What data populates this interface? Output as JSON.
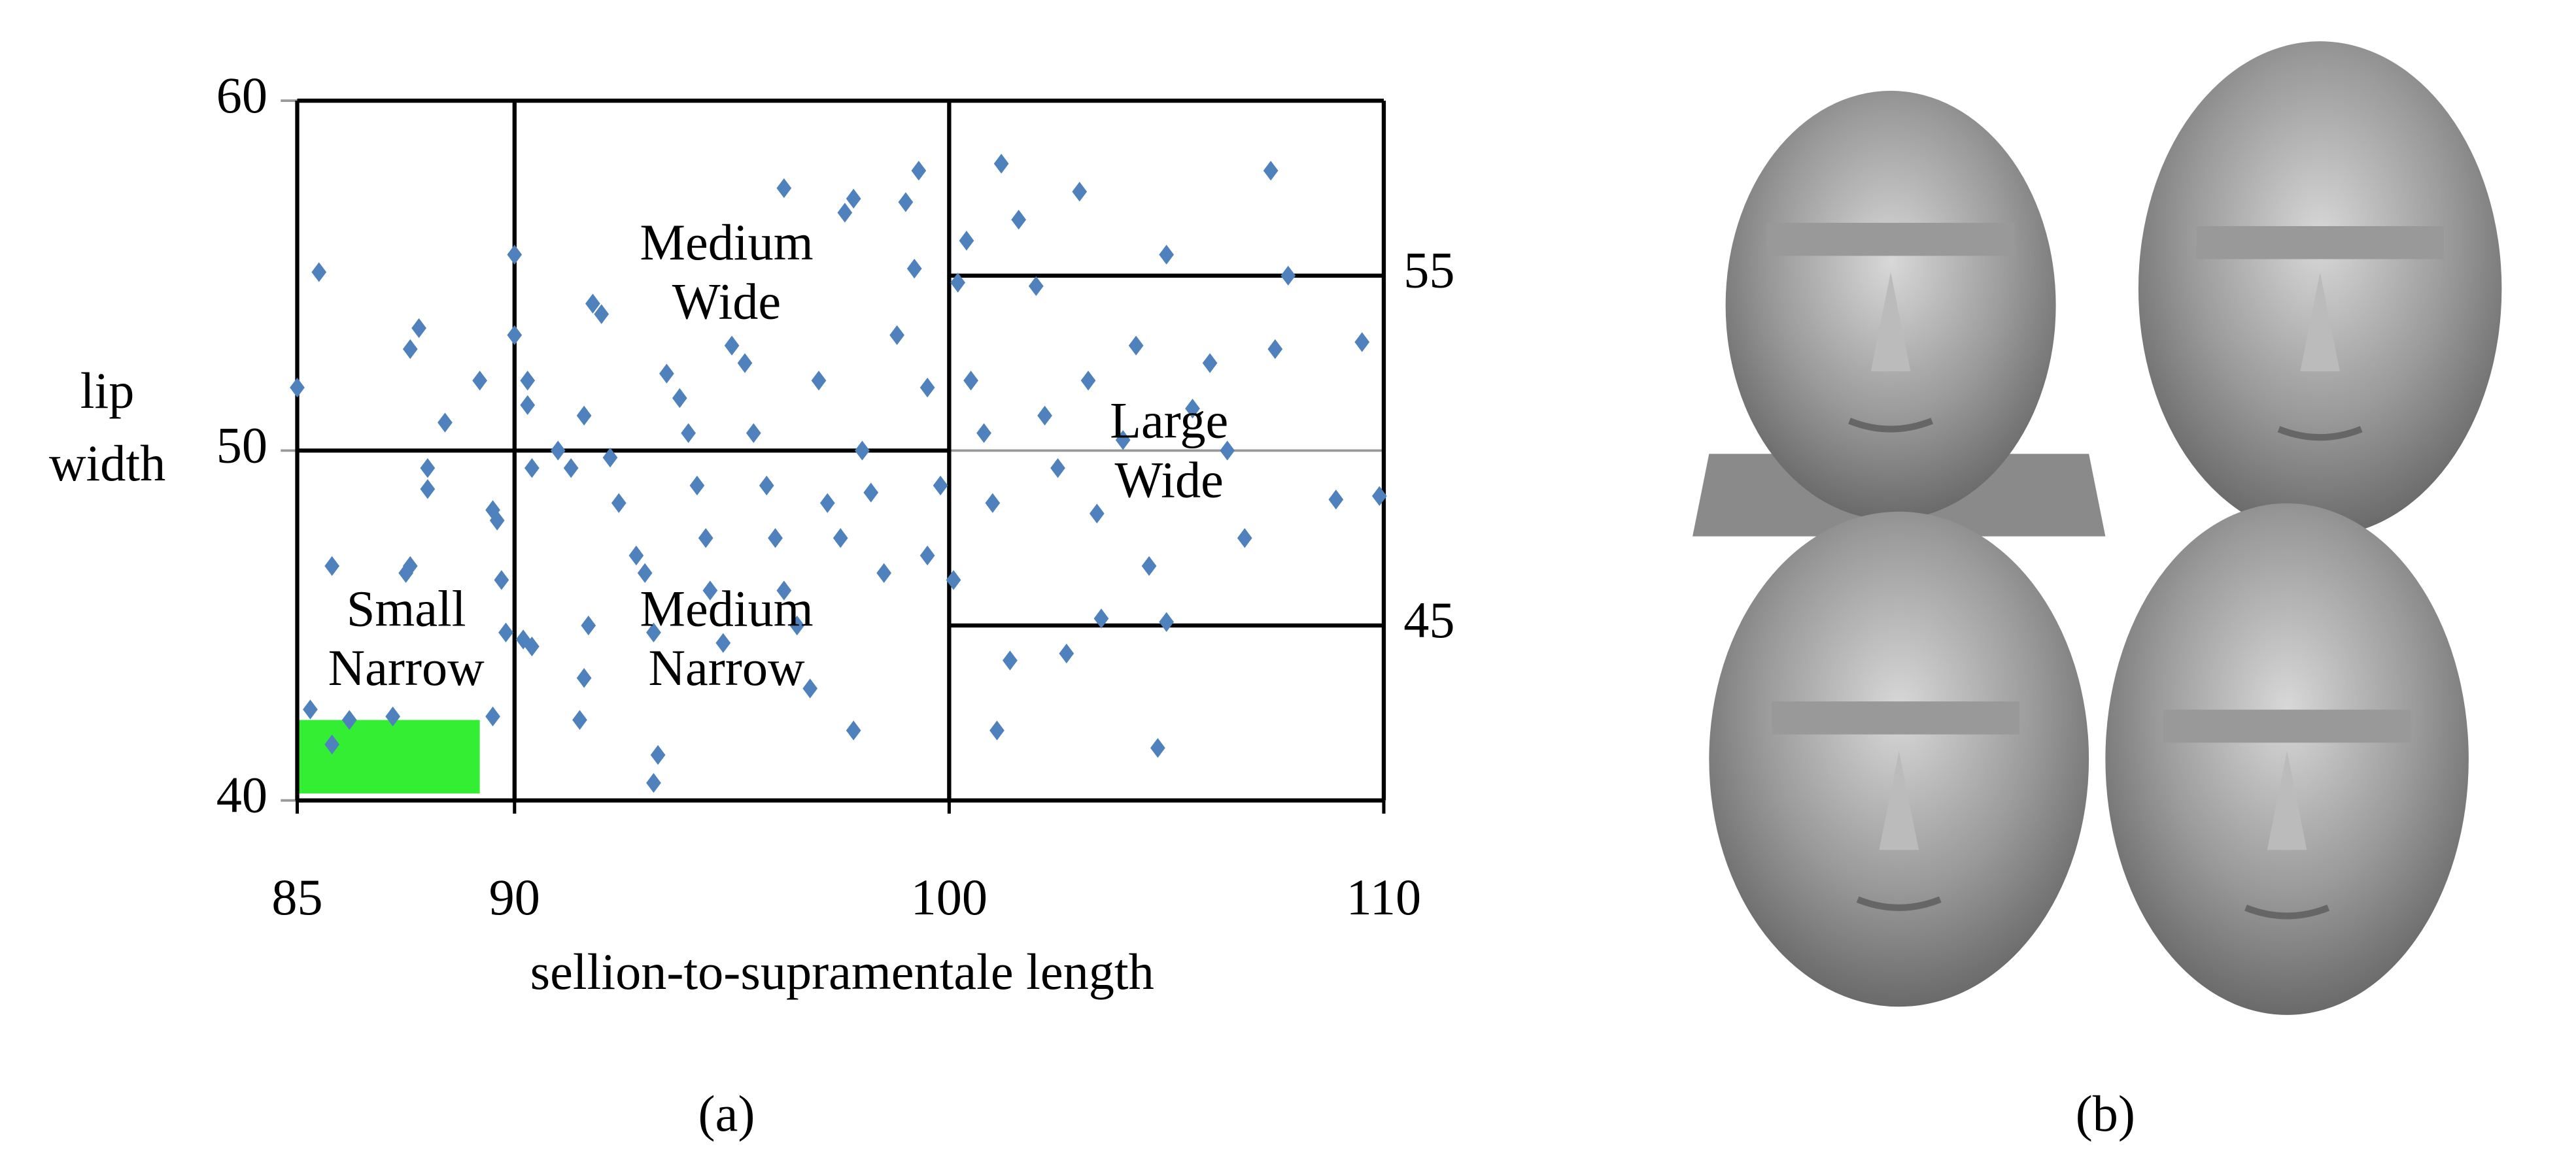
{
  "chart_data": {
    "type": "scatter",
    "xlabel": "sellion-to-supramentale  length",
    "ylabel": [
      "lip",
      "width"
    ],
    "caption": "(a)",
    "xlim": [
      85,
      110
    ],
    "xticks": [
      85,
      90,
      100,
      110
    ],
    "ylim": [
      40,
      60
    ],
    "yticks": [
      40,
      50,
      60
    ],
    "y2lim": [
      40,
      60
    ],
    "y2ticks": [
      45,
      55
    ],
    "grid": true,
    "color": "#4f81bd",
    "marker": "diamond",
    "x": [
      85,
      85.5,
      85.8,
      85.3,
      85.8,
      86.2,
      87.2,
      87.6,
      87.5,
      88.0,
      88.0,
      87.8,
      87.6,
      88.4,
      89.2,
      89.5,
      89.6,
      89.8,
      89.5,
      89.7,
      90.0,
      90.0,
      90.3,
      90.3,
      90.4,
      90.2,
      90.4,
      91.0,
      91.3,
      91.6,
      91.8,
      92.0,
      91.7,
      91.6,
      91.5,
      92.2,
      92.4,
      92.8,
      93.0,
      93.2,
      93.3,
      93.2,
      93.5,
      93.8,
      94.0,
      94.2,
      94.4,
      94.5,
      94.8,
      95.0,
      95.3,
      95.5,
      95.8,
      96.0,
      96.2,
      96.2,
      96.5,
      96.8,
      97.0,
      97.2,
      97.5,
      97.6,
      97.8,
      97.8,
      98.0,
      98.2,
      98.5,
      98.8,
      99.0,
      99.2,
      99.3,
      99.5,
      99.5,
      99.8,
      100.1,
      100.2,
      100.4,
      100.5,
      100.8,
      101.0,
      101.2,
      101.4,
      101.1,
      101.6,
      102.0,
      102.2,
      102.5,
      102.7,
      103.0,
      103.2,
      103.4,
      103.5,
      104.0,
      104.3,
      104.6,
      104.8,
      105.0,
      105.0,
      105.6,
      106.0,
      106.4,
      106.8,
      107.4,
      107.5,
      107.8,
      108.9,
      109.5,
      109.9
    ],
    "values": [
      51.8,
      55.1,
      46.7,
      42.6,
      41.6,
      42.3,
      42.4,
      46.7,
      46.5,
      48.9,
      49.5,
      53.5,
      52.9,
      50.8,
      52.0,
      48.3,
      48.0,
      44.8,
      42.4,
      46.3,
      55.6,
      53.3,
      52.0,
      51.3,
      49.5,
      44.6,
      44.4,
      50.0,
      49.5,
      51.0,
      54.2,
      53.9,
      45.0,
      43.5,
      42.3,
      49.8,
      48.5,
      47.0,
      46.5,
      44.8,
      41.3,
      40.5,
      52.2,
      51.5,
      50.5,
      49.0,
      47.5,
      46.0,
      44.5,
      53.0,
      52.5,
      50.5,
      49.0,
      47.5,
      46.0,
      57.5,
      45.0,
      43.2,
      52.0,
      48.5,
      47.5,
      56.8,
      57.2,
      42.0,
      50.0,
      48.8,
      46.5,
      53.3,
      57.1,
      55.2,
      58.0,
      51.8,
      47.0,
      49.0,
      46.3,
      54.8,
      56.0,
      52.0,
      50.5,
      48.5,
      58.2,
      44.0,
      42.0,
      56.6,
      54.7,
      51.0,
      49.5,
      44.2,
      57.4,
      52.0,
      48.2,
      45.2,
      50.3,
      53.0,
      46.7,
      41.5,
      45.1,
      55.6,
      51.2,
      52.5,
      50.0,
      47.5,
      58.0,
      52.9,
      55.0,
      48.6,
      53.1,
      48.7
    ],
    "boundaries": [
      {
        "x": [
          90,
          90
        ],
        "y": [
          40,
          60
        ]
      },
      {
        "x": [
          100,
          100
        ],
        "y": [
          40,
          60
        ]
      },
      {
        "x": [
          85,
          100
        ],
        "y": [
          50,
          50
        ]
      },
      {
        "x": [
          100,
          110
        ],
        "y": [
          45,
          45
        ]
      },
      {
        "x": [
          100,
          110
        ],
        "y": [
          55,
          55
        ]
      }
    ],
    "highlight": {
      "x": [
        85,
        89.2
      ],
      "y": [
        40.2,
        42.3
      ],
      "color": "#33ee33"
    },
    "annotations": [
      [
        "Medium",
        "Wide"
      ],
      [
        "Large",
        "Wide"
      ],
      [
        "Small",
        "Narrow"
      ],
      [
        "Medium",
        "Narrow"
      ]
    ]
  },
  "panel_b": {
    "caption": "(b)"
  }
}
